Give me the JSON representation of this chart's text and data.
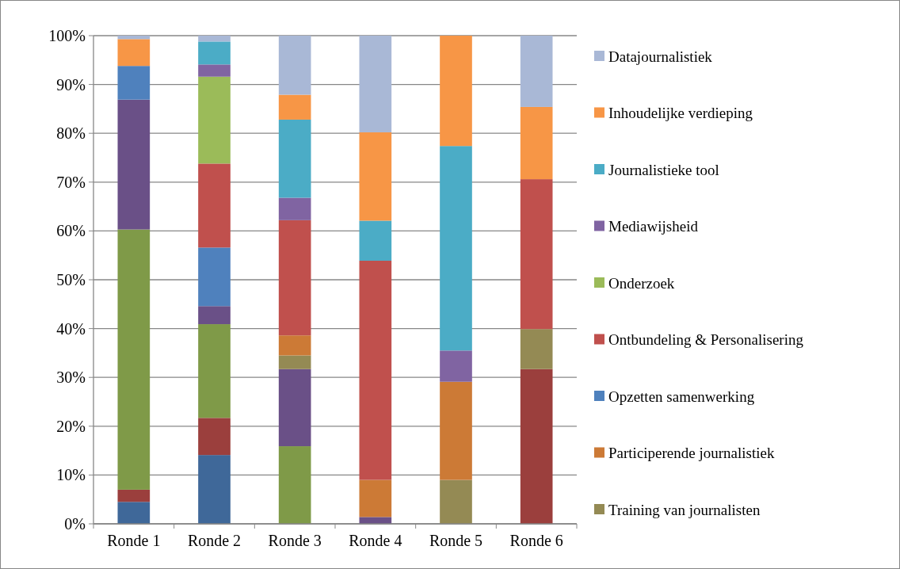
{
  "chart_data": {
    "type": "bar",
    "stacked": true,
    "categories": [
      "Ronde 1",
      "Ronde 2",
      "Ronde 3",
      "Ronde 4",
      "Ronde 5",
      "Ronde 6"
    ],
    "series": [
      {
        "color": "#3f6899",
        "values": [
          4.5,
          14.1,
          0,
          0,
          0,
          0
        ]
      },
      {
        "color": "#9b3f3d",
        "values": [
          2.5,
          7.6,
          0,
          0,
          0,
          31.7
        ]
      },
      {
        "color": "#7f9a48",
        "values": [
          53.3,
          19.2,
          15.9,
          0,
          0,
          0
        ]
      },
      {
        "color": "#6a5087",
        "values": [
          26.6,
          3.7,
          15.8,
          1.4,
          0,
          0
        ]
      },
      {
        "name": "Training van journalisten",
        "color": "#948a54",
        "values": [
          0,
          0,
          2.8,
          0,
          9.0,
          8.2
        ]
      },
      {
        "name": "Participerende journalistiek",
        "color": "#cc7a36",
        "values": [
          0,
          0,
          4.1,
          7.6,
          20.1,
          0
        ]
      },
      {
        "name": "Opzetten samenwerking",
        "color": "#4f81bd",
        "values": [
          6.9,
          12.0,
          0,
          0,
          0,
          0
        ]
      },
      {
        "name": "Ontbundeling & Personalisering",
        "color": "#c0504d",
        "values": [
          0,
          17.2,
          23.6,
          44.9,
          0,
          30.7
        ]
      },
      {
        "name": "Onderzoek",
        "color": "#9bbb59",
        "values": [
          0,
          17.8,
          0,
          0,
          0,
          0
        ]
      },
      {
        "name": "Mediawijsheid",
        "color": "#8064a2",
        "values": [
          0,
          2.5,
          4.6,
          0,
          6.4,
          0
        ]
      },
      {
        "name": "Journalistieke tool",
        "color": "#4bacc6",
        "values": [
          0,
          4.7,
          16.0,
          8.2,
          41.9,
          0
        ]
      },
      {
        "name": "Inhoudelijke verdieping",
        "color": "#f79646",
        "values": [
          5.5,
          0,
          5.1,
          18.1,
          22.6,
          14.8
        ]
      },
      {
        "name": "Datajournalistiek",
        "color": "#a9b8d6",
        "values": [
          0.7,
          1.2,
          12.1,
          19.8,
          0,
          14.6
        ]
      }
    ],
    "ylim": [
      0,
      100
    ],
    "yticks": [
      {
        "value": 0,
        "label": "0%"
      },
      {
        "value": 10,
        "label": "10%"
      },
      {
        "value": 20,
        "label": "20%"
      },
      {
        "value": 30,
        "label": "30%"
      },
      {
        "value": 40,
        "label": "40%"
      },
      {
        "value": 50,
        "label": "50%"
      },
      {
        "value": 60,
        "label": "60%"
      },
      {
        "value": 70,
        "label": "70%"
      },
      {
        "value": 80,
        "label": "80%"
      },
      {
        "value": 90,
        "label": "90%"
      },
      {
        "value": 100,
        "label": "100%"
      }
    ],
    "grid": "y",
    "legend": "right"
  }
}
